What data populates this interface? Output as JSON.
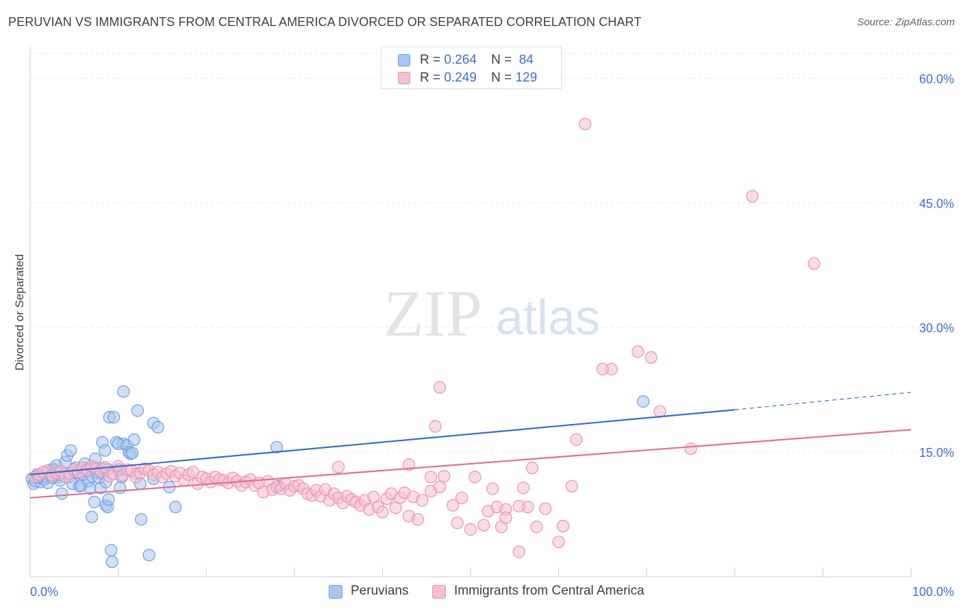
{
  "title": "PERUVIAN VS IMMIGRANTS FROM CENTRAL AMERICA DIVORCED OR SEPARATED CORRELATION CHART",
  "source": "Source: ZipAtlas.com",
  "watermark": {
    "zip": "ZIP",
    "atlas": "atlas"
  },
  "legend": {
    "r_label": "R =",
    "n_label": "N =",
    "entries": [
      {
        "r": "0.264",
        "n": "84",
        "fill": "#a8c6f0",
        "stroke": "#6f9ee0"
      },
      {
        "r": "0.249",
        "n": "129",
        "fill": "#f7bfd2",
        "stroke": "#ec8fb0"
      }
    ]
  },
  "bottom_legend": [
    "Peruvians",
    "Immigrants from Central America"
  ],
  "chart_data": {
    "type": "scatter",
    "title": "PERUVIAN VS IMMIGRANTS FROM CENTRAL AMERICA DIVORCED OR SEPARATED CORRELATION CHART",
    "xlabel": "",
    "ylabel": "Divorced or Separated",
    "xlim": [
      0,
      100
    ],
    "ylim": [
      0,
      63
    ],
    "x_tick_labels": [
      "0.0%",
      "100.0%"
    ],
    "y_ticks": [
      15,
      30,
      45,
      60
    ],
    "y_tick_labels": [
      "15.0%",
      "30.0%",
      "45.0%",
      "60.0%"
    ],
    "grid": true,
    "legend_position": "top-center",
    "series": [
      {
        "name": "Peruvians",
        "color": "#6f9ee0",
        "fill": "#a8c6f0",
        "line_color": "#2f6fd0",
        "trend": {
          "x": [
            0,
            80
          ],
          "y": [
            12.3,
            20.1
          ],
          "dashed_to": [
            100,
            22.2
          ]
        },
        "points": [
          [
            0.2,
            11.8
          ],
          [
            0.4,
            11.2
          ],
          [
            0.6,
            11.5
          ],
          [
            0.8,
            12.3
          ],
          [
            1.0,
            11.9
          ],
          [
            1.2,
            11.4
          ],
          [
            1.4,
            12.1
          ],
          [
            1.6,
            11.7
          ],
          [
            1.8,
            12.0
          ],
          [
            2.0,
            11.3
          ],
          [
            2.2,
            12.6
          ],
          [
            2.4,
            12.2
          ],
          [
            2.6,
            13.0
          ],
          [
            2.8,
            12.8
          ],
          [
            3.0,
            13.4
          ],
          [
            3.2,
            12.0
          ],
          [
            3.4,
            11.6
          ],
          [
            3.6,
            10.0
          ],
          [
            3.8,
            12.4
          ],
          [
            4.0,
            13.8
          ],
          [
            4.2,
            14.6
          ],
          [
            4.4,
            12.0
          ],
          [
            4.6,
            15.2
          ],
          [
            4.8,
            11.2
          ],
          [
            5.0,
            12.7
          ],
          [
            5.2,
            13.1
          ],
          [
            5.4,
            12.5
          ],
          [
            5.6,
            10.9
          ],
          [
            5.8,
            11.0
          ],
          [
            6.0,
            12.3
          ],
          [
            6.2,
            13.6
          ],
          [
            6.4,
            12.9
          ],
          [
            6.6,
            11.5
          ],
          [
            6.8,
            10.6
          ],
          [
            7.0,
            12.1
          ],
          [
            7.2,
            13.2
          ],
          [
            7.4,
            14.2
          ],
          [
            7.6,
            12.6
          ],
          [
            7.8,
            11.9
          ],
          [
            8.0,
            10.7
          ],
          [
            8.2,
            12.4
          ],
          [
            8.4,
            13.0
          ],
          [
            8.6,
            11.4
          ],
          [
            8.8,
            12.9
          ],
          [
            7.0,
            7.2
          ],
          [
            7.3,
            9.0
          ],
          [
            8.2,
            16.2
          ],
          [
            8.5,
            15.2
          ],
          [
            8.6,
            8.6
          ],
          [
            8.8,
            8.4
          ],
          [
            8.9,
            9.3
          ],
          [
            9.0,
            19.2
          ],
          [
            9.2,
            3.2
          ],
          [
            9.3,
            1.8
          ],
          [
            9.5,
            19.2
          ],
          [
            9.8,
            16.2
          ],
          [
            10.0,
            12.9
          ],
          [
            10.2,
            10.7
          ],
          [
            10.4,
            12.0
          ],
          [
            10.6,
            16.0
          ],
          [
            10.0,
            16.0
          ],
          [
            10.2,
            12.9
          ],
          [
            10.6,
            22.3
          ],
          [
            11.0,
            15.8
          ],
          [
            11.2,
            15.0
          ],
          [
            11.4,
            14.8
          ],
          [
            11.6,
            14.9
          ],
          [
            11.8,
            16.5
          ],
          [
            12.0,
            12.4
          ],
          [
            12.2,
            20.0
          ],
          [
            12.5,
            11.2
          ],
          [
            12.6,
            6.9
          ],
          [
            13.5,
            2.6
          ],
          [
            14.0,
            18.5
          ],
          [
            14.5,
            18.0
          ],
          [
            14.0,
            11.8
          ],
          [
            15.8,
            10.8
          ],
          [
            16.5,
            8.4
          ],
          [
            28.0,
            15.6
          ],
          [
            28.2,
            10.9
          ],
          [
            69.6,
            21.1
          ],
          [
            2.5,
            11.9
          ],
          [
            3.3,
            12.3
          ],
          [
            0.9,
            12.0
          ]
        ]
      },
      {
        "name": "Immigrants from Central America",
        "color": "#ec8fb0",
        "fill": "#f7bfd2",
        "line_color": "#e36d99",
        "trend": {
          "x": [
            0,
            100
          ],
          "y": [
            9.5,
            17.7
          ]
        },
        "points": [
          [
            0.5,
            12.0
          ],
          [
            1.0,
            12.3
          ],
          [
            1.5,
            12.6
          ],
          [
            2.0,
            12.8
          ],
          [
            2.5,
            12.2
          ],
          [
            3.0,
            12.5
          ],
          [
            3.5,
            12.7
          ],
          [
            4.0,
            12.0
          ],
          [
            4.5,
            12.4
          ],
          [
            5.0,
            12.9
          ],
          [
            5.5,
            12.6
          ],
          [
            6.0,
            13.1
          ],
          [
            6.5,
            12.8
          ],
          [
            7.0,
            13.3
          ],
          [
            7.5,
            13.0
          ],
          [
            8.0,
            12.7
          ],
          [
            8.5,
            13.2
          ],
          [
            9.0,
            12.1
          ],
          [
            9.5,
            12.4
          ],
          [
            10.0,
            13.3
          ],
          [
            10.5,
            12.2
          ],
          [
            11.0,
            12.9
          ],
          [
            11.5,
            12.8
          ],
          [
            12.0,
            12.0
          ],
          [
            12.5,
            12.5
          ],
          [
            13.0,
            13.0
          ],
          [
            13.5,
            12.8
          ],
          [
            14.0,
            12.3
          ],
          [
            14.5,
            12.6
          ],
          [
            15.0,
            12.0
          ],
          [
            15.5,
            12.4
          ],
          [
            16.0,
            12.7
          ],
          [
            16.5,
            12.1
          ],
          [
            17.0,
            12.5
          ],
          [
            17.5,
            11.6
          ],
          [
            18.0,
            12.3
          ],
          [
            18.5,
            12.6
          ],
          [
            19.0,
            11.2
          ],
          [
            19.5,
            12.0
          ],
          [
            20.0,
            11.8
          ],
          [
            20.5,
            11.4
          ],
          [
            21.0,
            12.0
          ],
          [
            21.5,
            11.7
          ],
          [
            22.0,
            11.6
          ],
          [
            22.5,
            11.3
          ],
          [
            23.0,
            11.9
          ],
          [
            23.5,
            11.5
          ],
          [
            24.0,
            11.0
          ],
          [
            24.5,
            11.4
          ],
          [
            25.0,
            11.7
          ],
          [
            25.5,
            11.0
          ],
          [
            26.0,
            11.3
          ],
          [
            26.5,
            10.2
          ],
          [
            27.0,
            11.5
          ],
          [
            27.5,
            10.5
          ],
          [
            28.0,
            10.8
          ],
          [
            28.5,
            10.6
          ],
          [
            29.0,
            11.2
          ],
          [
            29.5,
            10.4
          ],
          [
            30.0,
            10.9
          ],
          [
            30.5,
            11.0
          ],
          [
            31.0,
            10.6
          ],
          [
            31.5,
            10.0
          ],
          [
            32.0,
            9.8
          ],
          [
            32.5,
            10.4
          ],
          [
            33.0,
            9.7
          ],
          [
            33.5,
            10.5
          ],
          [
            34.0,
            9.2
          ],
          [
            34.5,
            10.0
          ],
          [
            35.0,
            9.5
          ],
          [
            35.5,
            8.9
          ],
          [
            36.0,
            9.7
          ],
          [
            36.5,
            9.3
          ],
          [
            37.0,
            9.0
          ],
          [
            37.5,
            8.6
          ],
          [
            38.0,
            9.2
          ],
          [
            38.5,
            8.1
          ],
          [
            39.0,
            9.6
          ],
          [
            39.5,
            8.4
          ],
          [
            40.0,
            7.8
          ],
          [
            40.5,
            9.4
          ],
          [
            41.0,
            10.0
          ],
          [
            41.5,
            8.3
          ],
          [
            42.0,
            9.5
          ],
          [
            42.5,
            10.1
          ],
          [
            43.0,
            7.3
          ],
          [
            43.5,
            9.6
          ],
          [
            44.0,
            6.9
          ],
          [
            44.5,
            9.2
          ],
          [
            45.5,
            10.3
          ],
          [
            46.5,
            10.8
          ],
          [
            48.0,
            8.6
          ],
          [
            48.5,
            6.5
          ],
          [
            49.0,
            9.5
          ],
          [
            50.0,
            5.7
          ],
          [
            50.5,
            12.0
          ],
          [
            51.5,
            6.2
          ],
          [
            52.0,
            7.9
          ],
          [
            52.5,
            10.6
          ],
          [
            53.0,
            8.4
          ],
          [
            53.5,
            6.0
          ],
          [
            54.0,
            8.1
          ],
          [
            54.0,
            7.1
          ],
          [
            55.5,
            3.0
          ],
          [
            56.0,
            10.7
          ],
          [
            56.5,
            8.4
          ],
          [
            57.0,
            13.1
          ],
          [
            57.5,
            6.0
          ],
          [
            58.5,
            8.2
          ],
          [
            60.0,
            4.2
          ],
          [
            60.5,
            6.1
          ],
          [
            61.5,
            10.9
          ],
          [
            45.5,
            12.0
          ],
          [
            35.0,
            13.2
          ],
          [
            43.0,
            13.5
          ],
          [
            46.0,
            18.1
          ],
          [
            47.0,
            12.1
          ],
          [
            55.5,
            8.5
          ],
          [
            62.0,
            16.5
          ],
          [
            66.0,
            25.0
          ],
          [
            46.5,
            22.8
          ],
          [
            65.0,
            25.0
          ],
          [
            71.5,
            19.9
          ],
          [
            75.0,
            15.4
          ],
          [
            63.0,
            54.5
          ],
          [
            69.0,
            27.1
          ],
          [
            70.5,
            26.4
          ],
          [
            82.0,
            45.8
          ],
          [
            89.0,
            37.7
          ]
        ]
      }
    ]
  }
}
